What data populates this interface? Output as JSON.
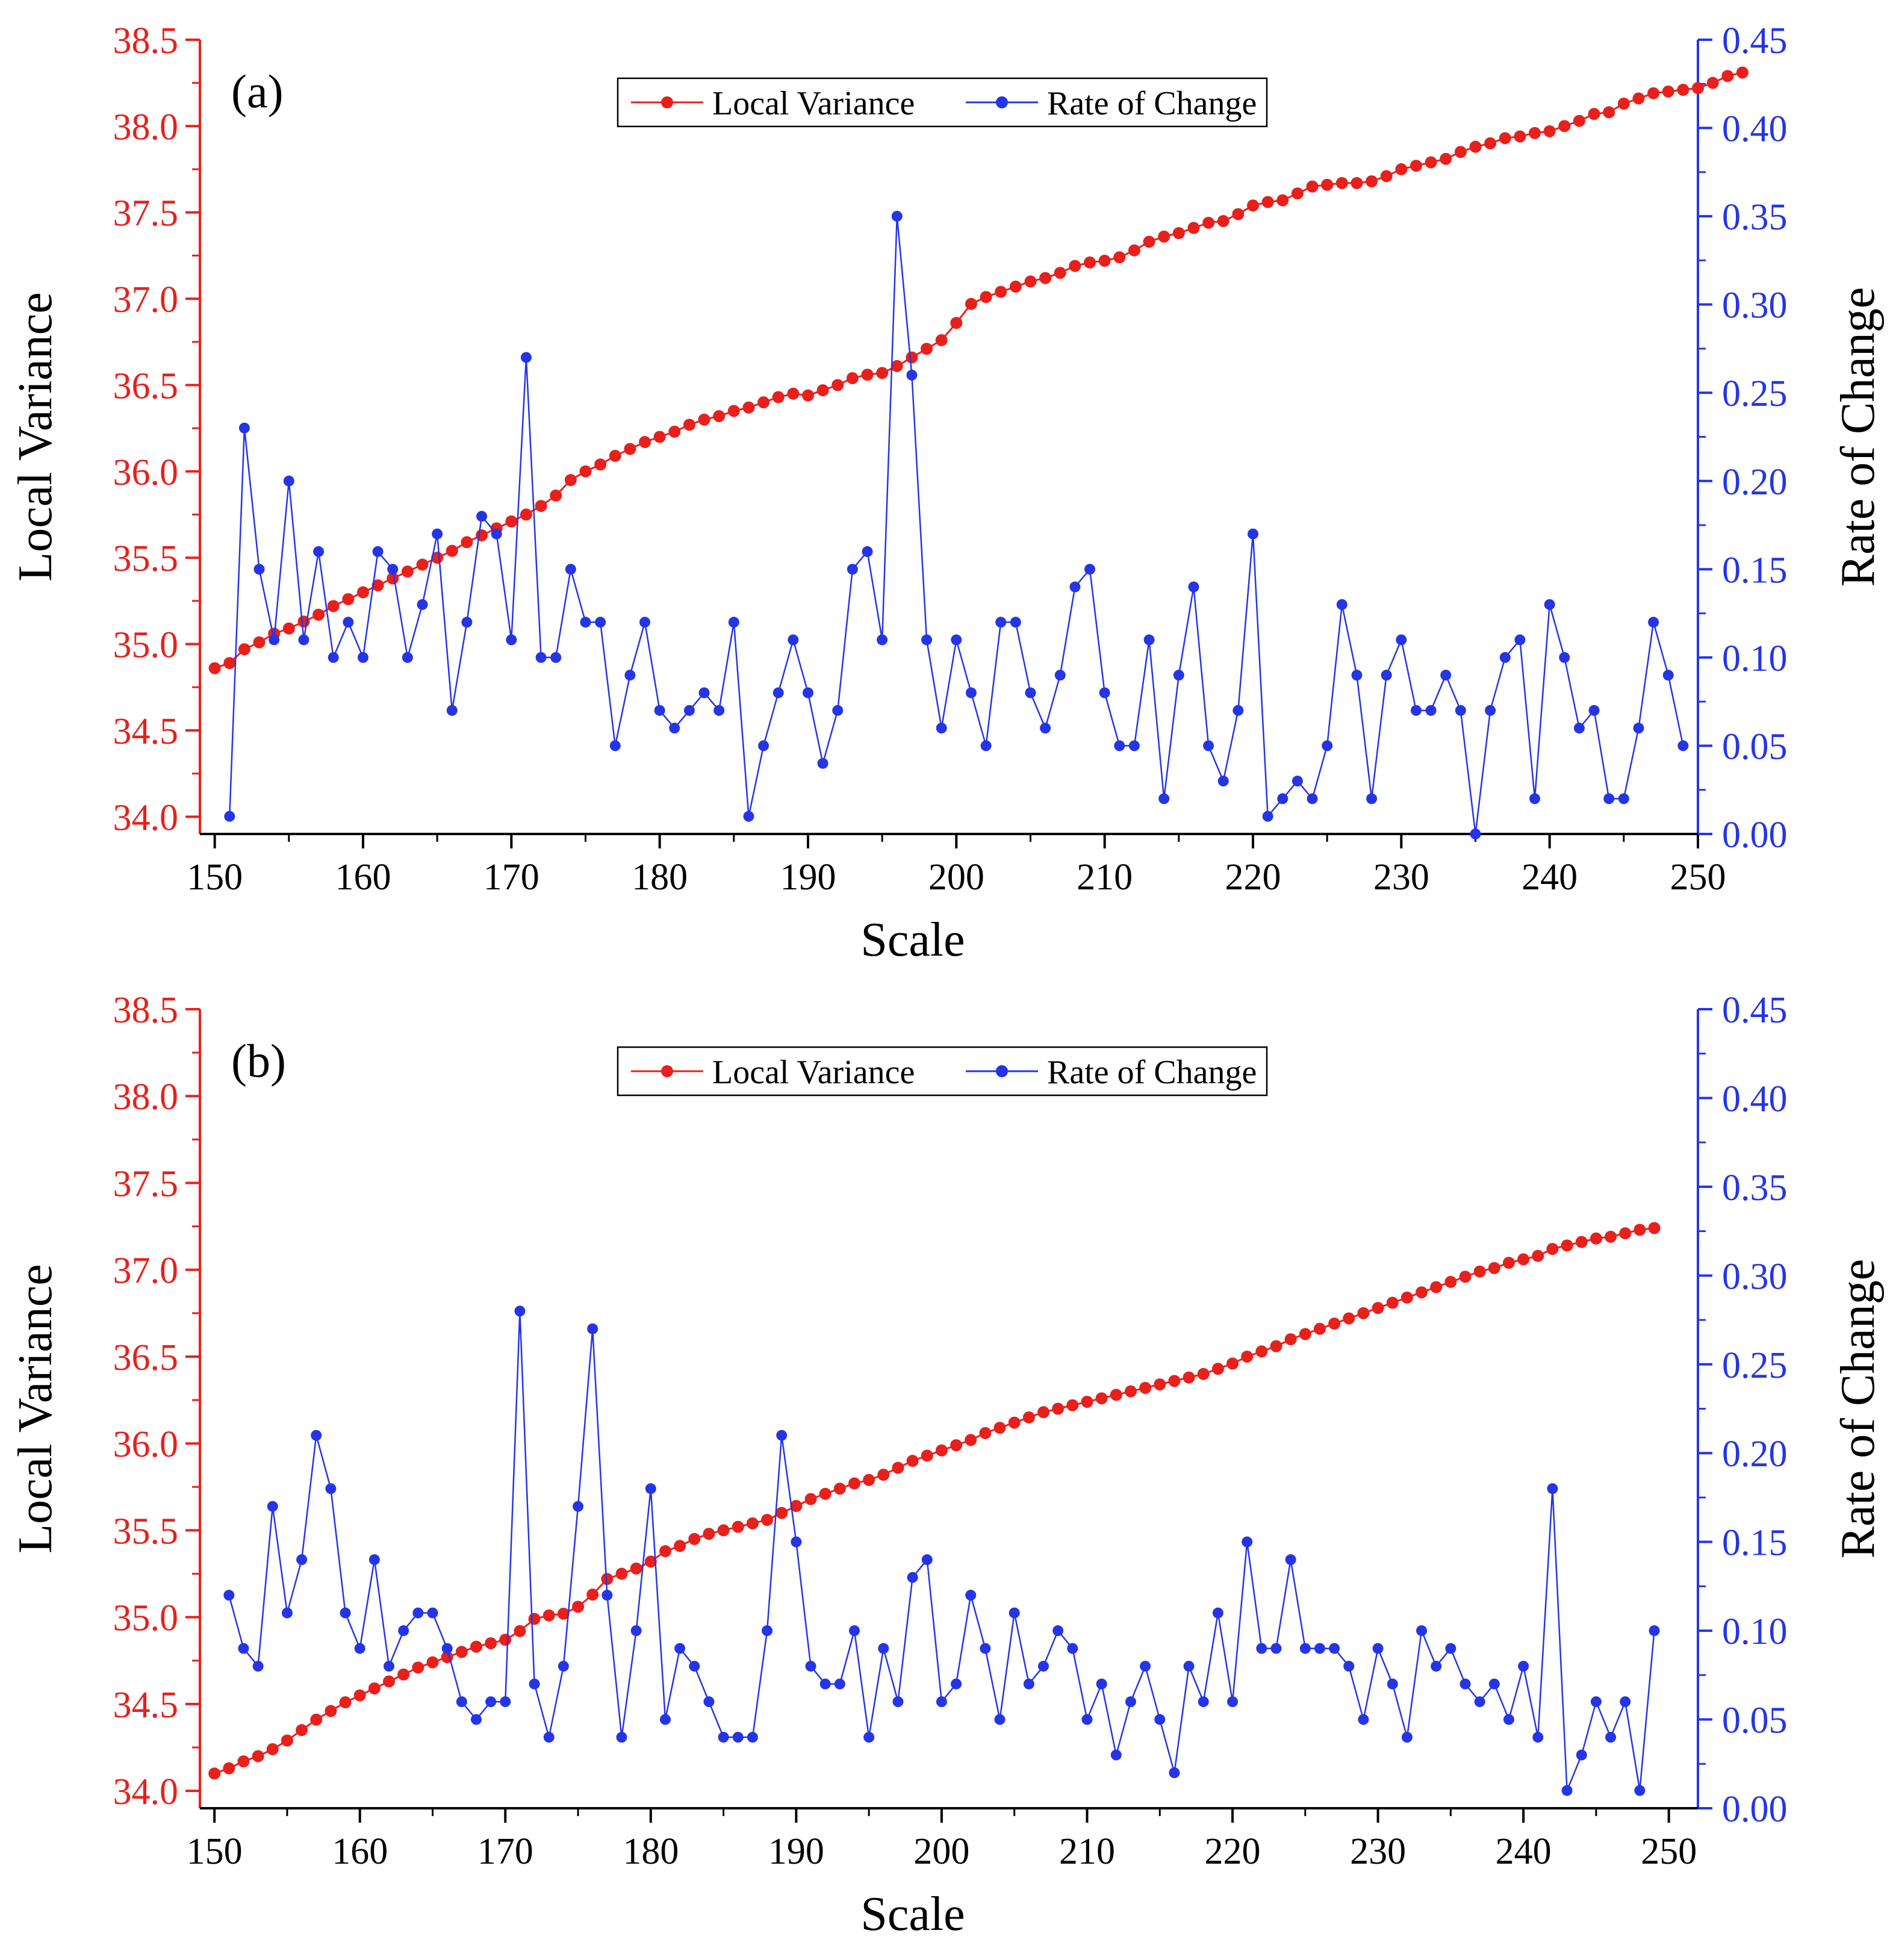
{
  "chart_data": [
    {
      "type": "line",
      "panel_label": "(a)",
      "xlabel": "Scale",
      "ylabel_left": "Local Variance",
      "ylabel_right": "Rate of Change",
      "xlim": [
        149,
        250
      ],
      "ylim_left": [
        33.9,
        38.5
      ],
      "ylim_right": [
        0.0,
        0.45
      ],
      "x_ticks": [
        "150",
        "160",
        "170",
        "180",
        "190",
        "200",
        "210",
        "220",
        "230",
        "240",
        "250"
      ],
      "y_left_ticks": [
        "34.0",
        "34.5",
        "35.0",
        "35.5",
        "36.0",
        "36.5",
        "37.0",
        "37.5",
        "38.0",
        "38.5"
      ],
      "y_right_ticks": [
        "0.00",
        "0.05",
        "0.10",
        "0.15",
        "0.20",
        "0.25",
        "0.30",
        "0.35",
        "0.40",
        "0.45"
      ],
      "legend_location": "top-center",
      "series": [
        {
          "name": "Local Variance",
          "axis": "left",
          "color": "#e8201c",
          "x_start": 150,
          "values": [
            34.86,
            34.89,
            34.97,
            35.01,
            35.06,
            35.09,
            35.13,
            35.17,
            35.22,
            35.26,
            35.3,
            35.34,
            35.38,
            35.42,
            35.46,
            35.5,
            35.54,
            35.59,
            35.63,
            35.67,
            35.71,
            35.75,
            35.8,
            35.86,
            35.95,
            36.0,
            36.04,
            36.09,
            36.13,
            36.17,
            36.2,
            36.23,
            36.27,
            36.3,
            36.32,
            36.35,
            36.37,
            36.4,
            36.43,
            36.45,
            36.44,
            36.47,
            36.5,
            36.54,
            36.56,
            36.57,
            36.61,
            36.66,
            36.71,
            36.76,
            36.86,
            36.97,
            37.01,
            37.04,
            37.07,
            37.1,
            37.12,
            37.15,
            37.19,
            37.21,
            37.22,
            37.24,
            37.28,
            37.33,
            37.36,
            37.38,
            37.41,
            37.44,
            37.45,
            37.49,
            37.54,
            37.56,
            37.57,
            37.61,
            37.65,
            37.66,
            37.67,
            37.67,
            37.68,
            37.71,
            37.75,
            37.77,
            37.79,
            37.81,
            37.85,
            37.88,
            37.9,
            37.93,
            37.94,
            37.96,
            37.97,
            38.0,
            38.03,
            38.07,
            38.08,
            38.13,
            38.16,
            38.19,
            38.2,
            38.21,
            38.22,
            38.25,
            38.29,
            38.31
          ]
        },
        {
          "name": "Rate of Change",
          "axis": "right",
          "color": "#2535e6",
          "x_start": 151,
          "values": [
            0.01,
            0.23,
            0.15,
            0.11,
            0.2,
            0.11,
            0.16,
            0.1,
            0.12,
            0.1,
            0.16,
            0.15,
            0.1,
            0.13,
            0.17,
            0.07,
            0.12,
            0.18,
            0.17,
            0.11,
            0.27,
            0.1,
            0.1,
            0.15,
            0.12,
            0.12,
            0.05,
            0.09,
            0.12,
            0.07,
            0.06,
            0.07,
            0.08,
            0.07,
            0.12,
            0.01,
            0.05,
            0.08,
            0.11,
            0.08,
            0.04,
            0.07,
            0.15,
            0.16,
            0.11,
            0.35,
            0.26,
            0.11,
            0.06,
            0.11,
            0.08,
            0.05,
            0.12,
            0.12,
            0.08,
            0.06,
            0.09,
            0.14,
            0.15,
            0.08,
            0.05,
            0.05,
            0.11,
            0.02,
            0.09,
            0.14,
            0.05,
            0.03,
            0.07,
            0.17,
            0.01,
            0.02,
            0.03,
            0.02,
            0.05,
            0.13,
            0.09,
            0.02,
            0.09,
            0.11,
            0.07,
            0.07,
            0.09,
            0.07,
            0.0,
            0.07,
            0.1,
            0.11,
            0.02,
            0.13,
            0.1,
            0.06,
            0.07,
            0.02,
            0.02,
            0.06,
            0.12,
            0.09,
            0.05
          ]
        }
      ]
    },
    {
      "type": "line",
      "panel_label": "(b)",
      "xlabel": "Scale",
      "ylabel_left": "Local Variance",
      "ylabel_right": "Rate of Change",
      "xlim": [
        149,
        252
      ],
      "ylim_left": [
        33.9,
        38.5
      ],
      "ylim_right": [
        0.0,
        0.45
      ],
      "x_ticks": [
        "150",
        "160",
        "170",
        "180",
        "190",
        "200",
        "210",
        "220",
        "230",
        "240",
        "250"
      ],
      "y_left_ticks": [
        "34.0",
        "34.5",
        "35.0",
        "35.5",
        "36.0",
        "36.5",
        "37.0",
        "37.5",
        "38.0",
        "38.5"
      ],
      "y_right_ticks": [
        "0.00",
        "0.05",
        "0.10",
        "0.15",
        "0.20",
        "0.25",
        "0.30",
        "0.35",
        "0.40",
        "0.45"
      ],
      "legend_location": "top-center",
      "series": [
        {
          "name": "Local Variance",
          "axis": "left",
          "color": "#e8201c",
          "x_start": 150,
          "values": [
            34.1,
            34.13,
            34.17,
            34.2,
            34.24,
            34.29,
            34.35,
            34.41,
            34.46,
            34.51,
            34.55,
            34.59,
            34.63,
            34.67,
            34.71,
            34.74,
            34.77,
            34.8,
            34.83,
            34.85,
            34.87,
            34.92,
            34.99,
            35.01,
            35.02,
            35.06,
            35.13,
            35.22,
            35.25,
            35.28,
            35.32,
            35.38,
            35.41,
            35.45,
            35.48,
            35.5,
            35.52,
            35.54,
            35.56,
            35.6,
            35.64,
            35.68,
            35.71,
            35.74,
            35.77,
            35.79,
            35.82,
            35.86,
            35.9,
            35.93,
            35.96,
            35.99,
            36.02,
            36.06,
            36.09,
            36.12,
            36.15,
            36.18,
            36.2,
            36.22,
            36.24,
            36.26,
            36.28,
            36.3,
            36.32,
            36.34,
            36.36,
            36.38,
            36.4,
            36.43,
            36.46,
            36.5,
            36.53,
            36.56,
            36.6,
            36.63,
            36.66,
            36.69,
            36.72,
            36.75,
            36.78,
            36.81,
            36.84,
            36.87,
            36.9,
            36.93,
            36.96,
            36.99,
            37.01,
            37.04,
            37.06,
            37.08,
            37.12,
            37.14,
            37.16,
            37.18,
            37.19,
            37.21,
            37.23,
            37.24
          ]
        },
        {
          "name": "Rate of Change",
          "axis": "right",
          "color": "#2535e6",
          "x_start": 151,
          "values": [
            0.12,
            0.09,
            0.08,
            0.17,
            0.11,
            0.14,
            0.21,
            0.18,
            0.11,
            0.09,
            0.14,
            0.08,
            0.1,
            0.11,
            0.11,
            0.09,
            0.06,
            0.05,
            0.06,
            0.06,
            0.28,
            0.07,
            0.04,
            0.08,
            0.17,
            0.27,
            0.12,
            0.04,
            0.1,
            0.18,
            0.05,
            0.09,
            0.08,
            0.06,
            0.04,
            0.04,
            0.04,
            0.1,
            0.21,
            0.15,
            0.08,
            0.07,
            0.07,
            0.1,
            0.04,
            0.09,
            0.06,
            0.13,
            0.14,
            0.06,
            0.07,
            0.12,
            0.09,
            0.05,
            0.11,
            0.07,
            0.08,
            0.1,
            0.09,
            0.05,
            0.07,
            0.03,
            0.06,
            0.08,
            0.05,
            0.02,
            0.08,
            0.06,
            0.11,
            0.06,
            0.15,
            0.09,
            0.09,
            0.14,
            0.09,
            0.09,
            0.09,
            0.08,
            0.05,
            0.09,
            0.07,
            0.04,
            0.1,
            0.08,
            0.09,
            0.07,
            0.06,
            0.07,
            0.05,
            0.08,
            0.04,
            0.18,
            0.01,
            0.03,
            0.06,
            0.04,
            0.06,
            0.01,
            0.1
          ]
        }
      ]
    }
  ]
}
